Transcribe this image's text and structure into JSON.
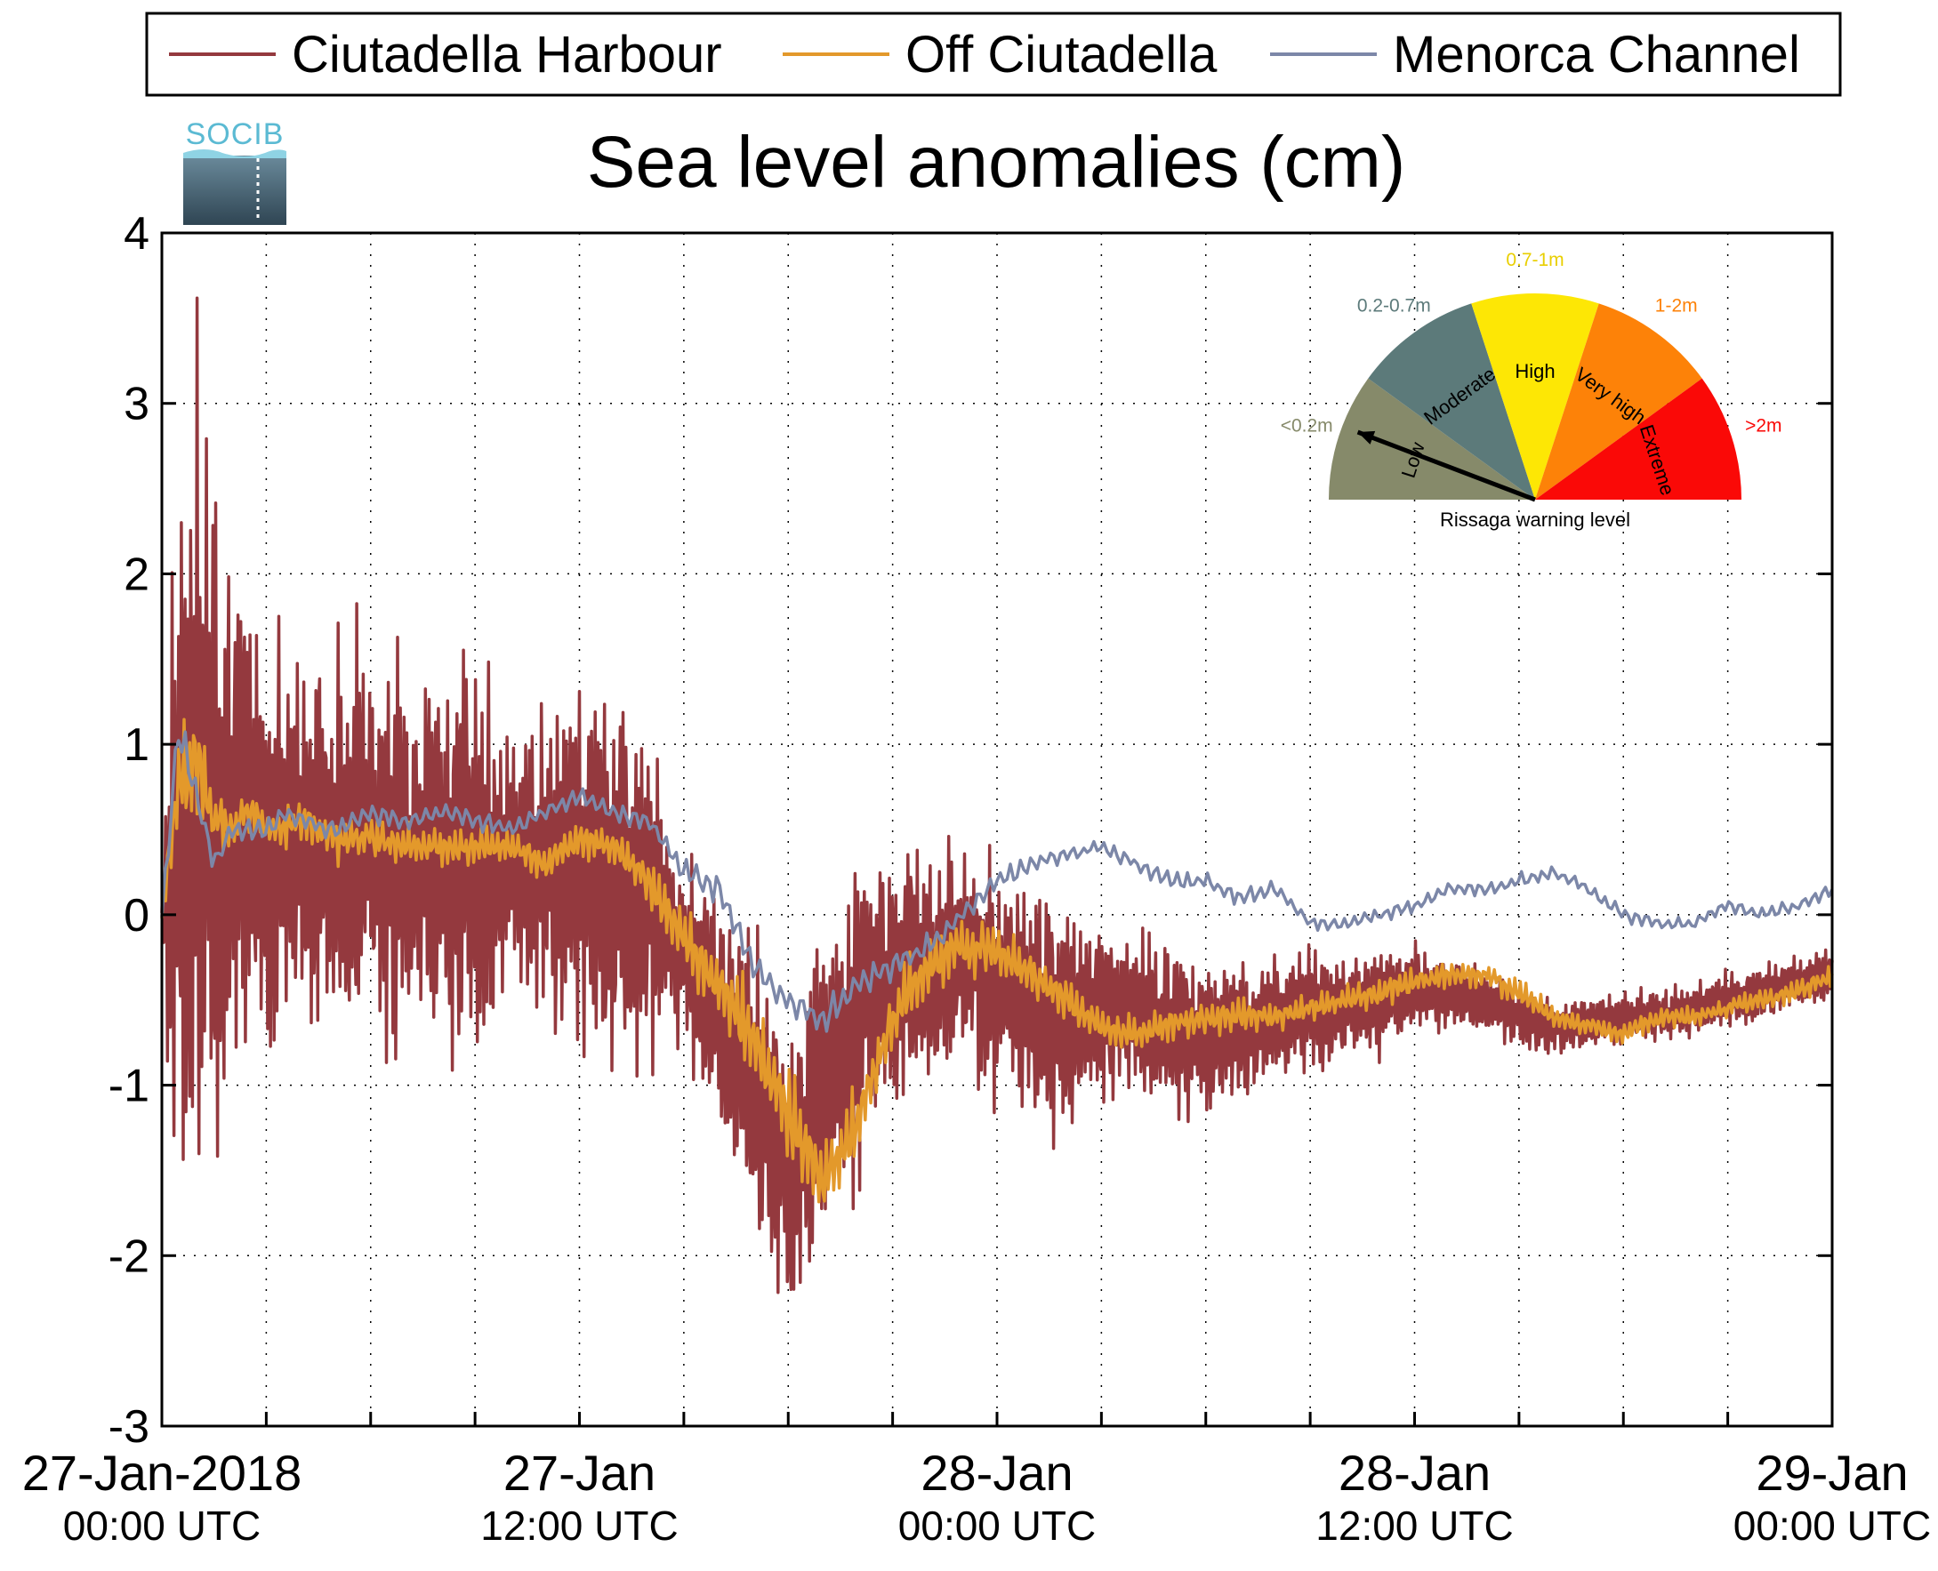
{
  "chart_data": {
    "type": "line",
    "title": "Sea level anomalies (cm)",
    "ylim": [
      -3,
      4
    ],
    "yticks": [
      "4",
      "3",
      "2",
      "1",
      "0",
      "-1",
      "-2",
      "-3"
    ],
    "xticks": [
      {
        "line1": "27-Jan-2018",
        "line2": "00:00 UTC"
      },
      {
        "line1": "27-Jan",
        "line2": "12:00 UTC"
      },
      {
        "line1": "28-Jan",
        "line2": "00:00 UTC"
      },
      {
        "line1": "28-Jan",
        "line2": "12:00 UTC"
      },
      {
        "line1": "29-Jan",
        "line2": "00:00 UTC"
      }
    ],
    "x_range_hours": [
      0,
      48
    ],
    "grid": true,
    "legend_position": "top",
    "series": [
      {
        "name": "Ciutadella Harbour",
        "color": "#94393e",
        "x_hours": [
          0,
          0.5,
          1,
          1.5,
          2,
          2.5,
          3,
          3.5,
          4,
          5,
          6,
          7,
          8,
          9,
          10,
          11,
          12,
          13,
          14,
          15,
          16,
          17,
          18,
          19,
          20,
          21,
          22,
          23,
          24,
          25,
          26,
          27,
          28,
          29,
          30,
          31,
          32,
          33,
          34,
          35,
          36,
          37,
          38,
          39,
          40,
          41,
          42,
          43,
          44,
          45,
          46,
          47,
          48
        ],
        "center": [
          0,
          0.4,
          0.8,
          0.6,
          0.5,
          0.5,
          0.4,
          0.5,
          0.45,
          0.4,
          0.4,
          0.35,
          0.35,
          0.35,
          0.3,
          0.25,
          0.3,
          0.3,
          0.1,
          -0.2,
          -0.5,
          -1.0,
          -1.5,
          -1.0,
          -0.6,
          -0.4,
          -0.3,
          -0.25,
          -0.35,
          -0.5,
          -0.65,
          -0.6,
          -0.6,
          -0.65,
          -0.75,
          -0.7,
          -0.6,
          -0.55,
          -0.55,
          -0.5,
          -0.45,
          -0.45,
          -0.5,
          -0.6,
          -0.65,
          -0.65,
          -0.6,
          -0.6,
          -0.55,
          -0.5,
          -0.45,
          -0.4,
          -0.35
        ],
        "amplitude": [
          0.3,
          2.2,
          2.4,
          2.0,
          1.7,
          1.3,
          1.1,
          1.2,
          1.0,
          1.3,
          1.2,
          1.0,
          1.1,
          1.2,
          0.8,
          1.0,
          1.0,
          1.2,
          0.9,
          0.6,
          0.7,
          0.8,
          0.8,
          0.8,
          0.9,
          0.7,
          0.75,
          0.6,
          0.7,
          0.65,
          0.6,
          0.5,
          0.45,
          0.45,
          0.45,
          0.4,
          0.35,
          0.35,
          0.3,
          0.3,
          0.25,
          0.2,
          0.18,
          0.18,
          0.16,
          0.15,
          0.15,
          0.15,
          0.15,
          0.15,
          0.15,
          0.15,
          0.15
        ]
      },
      {
        "name": "Off Ciutadella",
        "color": "#e3992b",
        "x_hours": [
          0,
          0.5,
          1,
          1.5,
          2,
          2.5,
          3,
          3.5,
          4,
          5,
          6,
          7,
          8,
          9,
          10,
          11,
          12,
          13,
          14,
          15,
          16,
          17,
          18,
          19,
          20,
          21,
          22,
          23,
          24,
          25,
          26,
          27,
          28,
          29,
          30,
          31,
          32,
          33,
          34,
          35,
          36,
          37,
          38,
          39,
          40,
          41,
          42,
          43,
          44,
          45,
          46,
          47,
          48
        ],
        "center": [
          0,
          0.8,
          0.9,
          0.6,
          0.5,
          0.6,
          0.5,
          0.5,
          0.55,
          0.45,
          0.45,
          0.4,
          0.4,
          0.4,
          0.4,
          0.3,
          0.45,
          0.4,
          0.2,
          -0.15,
          -0.4,
          -0.7,
          -1.2,
          -1.6,
          -1.2,
          -0.6,
          -0.3,
          -0.2,
          -0.2,
          -0.35,
          -0.5,
          -0.65,
          -0.7,
          -0.65,
          -0.6,
          -0.6,
          -0.6,
          -0.55,
          -0.5,
          -0.45,
          -0.4,
          -0.35,
          -0.35,
          -0.45,
          -0.6,
          -0.65,
          -0.7,
          -0.6,
          -0.6,
          -0.55,
          -0.5,
          -0.45,
          -0.35
        ],
        "amplitude": [
          0.1,
          0.4,
          0.3,
          0.2,
          0.15,
          0.15,
          0.12,
          0.15,
          0.12,
          0.15,
          0.12,
          0.12,
          0.12,
          0.12,
          0.1,
          0.1,
          0.1,
          0.1,
          0.15,
          0.2,
          0.2,
          0.25,
          0.3,
          0.25,
          0.2,
          0.2,
          0.2,
          0.15,
          0.15,
          0.12,
          0.12,
          0.1,
          0.1,
          0.1,
          0.1,
          0.1,
          0.08,
          0.08,
          0.08,
          0.08,
          0.08,
          0.08,
          0.08,
          0.08,
          0.06,
          0.06,
          0.06,
          0.06,
          0.06,
          0.06,
          0.06,
          0.06,
          0.06
        ]
      },
      {
        "name": "Menorca Channel",
        "color": "#7c87a8",
        "x_hours": [
          0,
          0.5,
          1,
          1.5,
          2,
          2.5,
          3,
          3.5,
          4,
          5,
          6,
          7,
          8,
          9,
          10,
          11,
          12,
          13,
          14,
          15,
          16,
          17,
          18,
          19,
          20,
          21,
          22,
          23,
          24,
          25,
          26,
          27,
          28,
          29,
          30,
          31,
          32,
          33,
          34,
          35,
          36,
          37,
          38,
          39,
          40,
          41,
          42,
          43,
          44,
          45,
          46,
          47,
          48
        ],
        "center": [
          0,
          1.1,
          0.7,
          0.3,
          0.5,
          0.5,
          0.5,
          0.6,
          0.55,
          0.5,
          0.6,
          0.55,
          0.6,
          0.55,
          0.5,
          0.6,
          0.7,
          0.6,
          0.55,
          0.25,
          0.15,
          -0.3,
          -0.5,
          -0.6,
          -0.4,
          -0.3,
          -0.2,
          0.0,
          0.2,
          0.3,
          0.35,
          0.4,
          0.3,
          0.2,
          0.2,
          0.1,
          0.15,
          -0.05,
          -0.05,
          0.0,
          0.05,
          0.15,
          0.15,
          0.2,
          0.25,
          0.15,
          0.0,
          -0.05,
          -0.05,
          0.05,
          0.0,
          0.05,
          0.15
        ],
        "amplitude": [
          0.05,
          0.15,
          0.1,
          0.08,
          0.06,
          0.06,
          0.06,
          0.06,
          0.06,
          0.06,
          0.06,
          0.06,
          0.06,
          0.06,
          0.06,
          0.06,
          0.06,
          0.06,
          0.06,
          0.08,
          0.08,
          0.08,
          0.1,
          0.1,
          0.08,
          0.08,
          0.08,
          0.06,
          0.06,
          0.06,
          0.05,
          0.05,
          0.05,
          0.05,
          0.05,
          0.05,
          0.05,
          0.04,
          0.04,
          0.04,
          0.04,
          0.04,
          0.04,
          0.04,
          0.04,
          0.04,
          0.04,
          0.04,
          0.04,
          0.04,
          0.04,
          0.04,
          0.04
        ]
      }
    ]
  },
  "logo": {
    "text": "SOCIB"
  },
  "gauge": {
    "title": "Rissaga warning level",
    "needle_level": "Low",
    "sectors": [
      {
        "name": "Low",
        "range": "<0.2m",
        "color": "#868a6a",
        "range_color": "#868a6a"
      },
      {
        "name": "Moderate",
        "range": "0.2-0.7m",
        "color": "#5c7a7a",
        "range_color": "#5c7a7a"
      },
      {
        "name": "High",
        "range": "0.7-1m",
        "color": "#fde705",
        "range_color": "#e9cf00"
      },
      {
        "name": "Very high",
        "range": "1-2m",
        "color": "#fd8208",
        "range_color": "#fd8208"
      },
      {
        "name": "Extreme",
        "range": ">2m",
        "color": "#fa0907",
        "range_color": "#fa0907"
      }
    ]
  }
}
